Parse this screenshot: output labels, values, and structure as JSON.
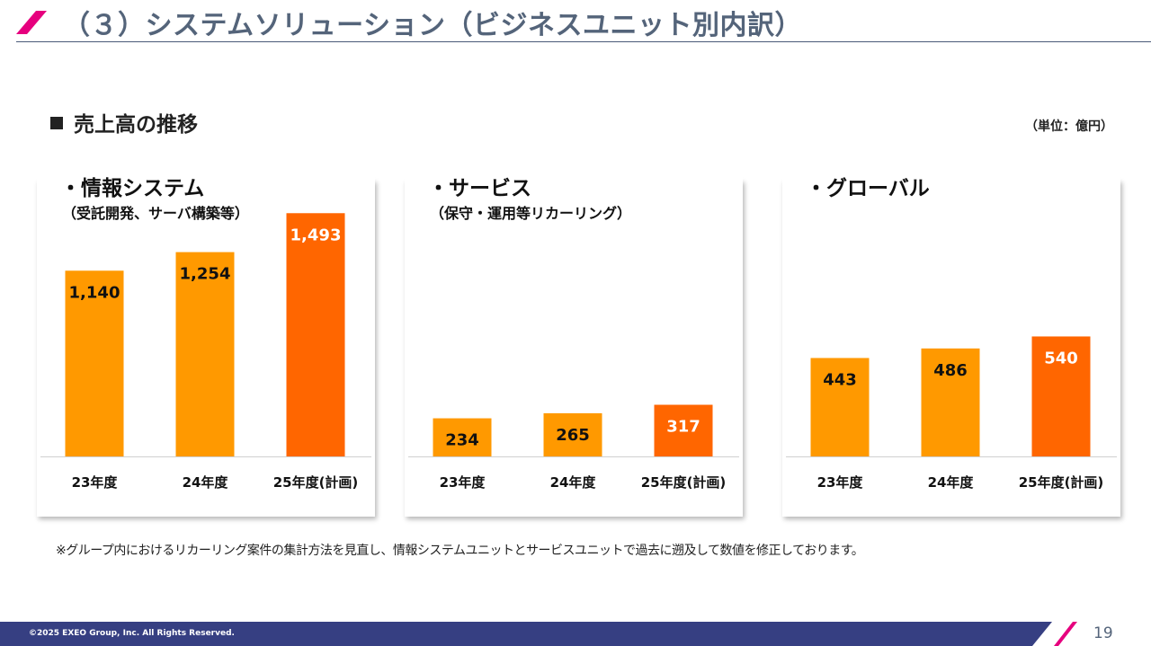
{
  "page": {
    "title": "（３）システムソリューション（ビジネスユニット別内訳）",
    "section_heading": "売上高の推移",
    "unit_note": "（単位：億円）",
    "footnote": "※グループ内におけるリカーリング案件の集計方法を見直し、情報システムユニットとサービスユニットで過去に遡及して数値を修正しております。",
    "copyright": "©2025 EXEO Group, Inc. All Rights Reserved.",
    "page_number": "19"
  },
  "colors": {
    "title_slash": "#e6007e",
    "footer_bar": "#363f82",
    "actual_bar": "#ff9900",
    "plan_bar": "#ff6600",
    "plan_label": "#ffffff",
    "actual_label": "#111111"
  },
  "chart_data": [
    {
      "type": "bar",
      "title": "・情報システム",
      "subtitle": "（受託開発、サーバ構築等）",
      "categories": [
        "23年度",
        "24年度",
        "25年度(計画)"
      ],
      "values": [
        1140,
        1254,
        1493
      ],
      "data_labels": [
        "1,140",
        "1,254",
        "1,493"
      ],
      "ylim": [
        0,
        1500
      ],
      "grid": false
    },
    {
      "type": "bar",
      "title": "・サービス",
      "subtitle": "（保守・運用等リカーリング）",
      "categories": [
        "23年度",
        "24年度",
        "25年度(計画)"
      ],
      "values": [
        234,
        265,
        317
      ],
      "data_labels": [
        "234",
        "265",
        "317"
      ],
      "ylim": [
        0,
        1500
      ],
      "grid": false
    },
    {
      "type": "bar",
      "title": "・グローバル",
      "subtitle": "",
      "categories": [
        "23年度",
        "24年度",
        "25年度(計画)"
      ],
      "values": [
        443,
        486,
        540
      ],
      "data_labels": [
        "443",
        "486",
        "540"
      ],
      "ylim": [
        0,
        1100
      ],
      "grid": false
    }
  ]
}
